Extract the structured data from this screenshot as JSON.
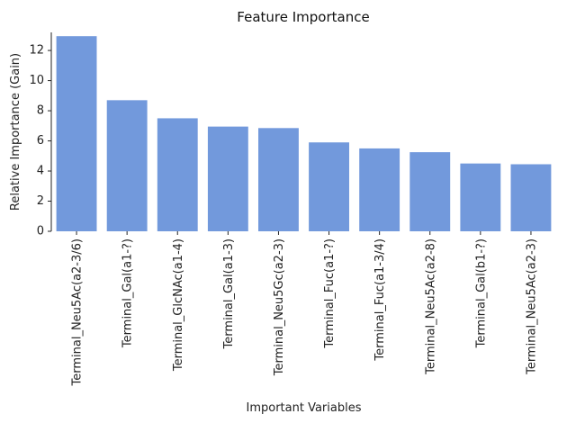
{
  "chart_data": {
    "type": "bar",
    "title": "Feature Importance",
    "xlabel": "Important Variables",
    "ylabel": "Relative Importance (Gain)",
    "categories": [
      "Terminal_Neu5Ac(a2-3/6)",
      "Terminal_Gal(a1-?)",
      "Terminal_GlcNAc(a1-4)",
      "Terminal_Gal(a1-3)",
      "Terminal_Neu5Gc(a2-3)",
      "Terminal_Fuc(a1-?)",
      "Terminal_Fuc(a1-3/4)",
      "Terminal_Neu5Ac(a2-8)",
      "Terminal_Gal(b1-?)",
      "Terminal_Neu5Ac(a2-3)"
    ],
    "values": [
      12.95,
      8.7,
      7.5,
      6.95,
      6.85,
      5.9,
      5.5,
      5.25,
      4.5,
      4.45
    ],
    "ylim": [
      0,
      13.2
    ],
    "yticks": [
      0,
      2,
      4,
      6,
      8,
      10,
      12
    ],
    "grid": false,
    "bar_color": "#7299dc"
  }
}
